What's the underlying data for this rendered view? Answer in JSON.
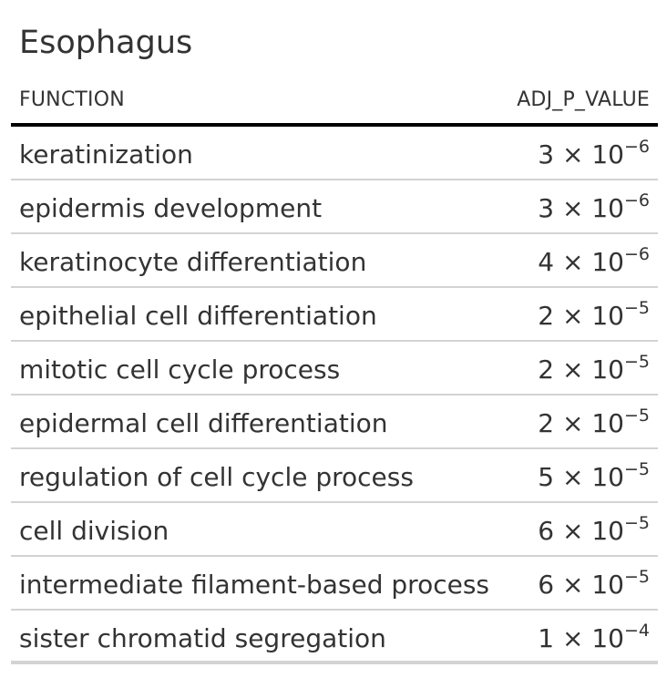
{
  "table": {
    "title": "Esophagus",
    "columns": {
      "function": "FUNCTION",
      "adj_p_value": "ADJ_P_VALUE"
    },
    "rows": [
      {
        "function": "keratinization",
        "mantissa": "3",
        "exponent": "−6"
      },
      {
        "function": "epidermis development",
        "mantissa": "3",
        "exponent": "−6"
      },
      {
        "function": "keratinocyte differentiation",
        "mantissa": "4",
        "exponent": "−6"
      },
      {
        "function": "epithelial cell differentiation",
        "mantissa": "2",
        "exponent": "−5"
      },
      {
        "function": "mitotic cell cycle process",
        "mantissa": "2",
        "exponent": "−5"
      },
      {
        "function": "epidermal cell differentiation",
        "mantissa": "2",
        "exponent": "−5"
      },
      {
        "function": "regulation of cell cycle process",
        "mantissa": "5",
        "exponent": "−5"
      },
      {
        "function": "cell division",
        "mantissa": "6",
        "exponent": "−5"
      },
      {
        "function": "intermediate filament-based process",
        "mantissa": "6",
        "exponent": "−5"
      },
      {
        "function": "sister chromatid segregation",
        "mantissa": "1",
        "exponent": "−4"
      }
    ]
  }
}
